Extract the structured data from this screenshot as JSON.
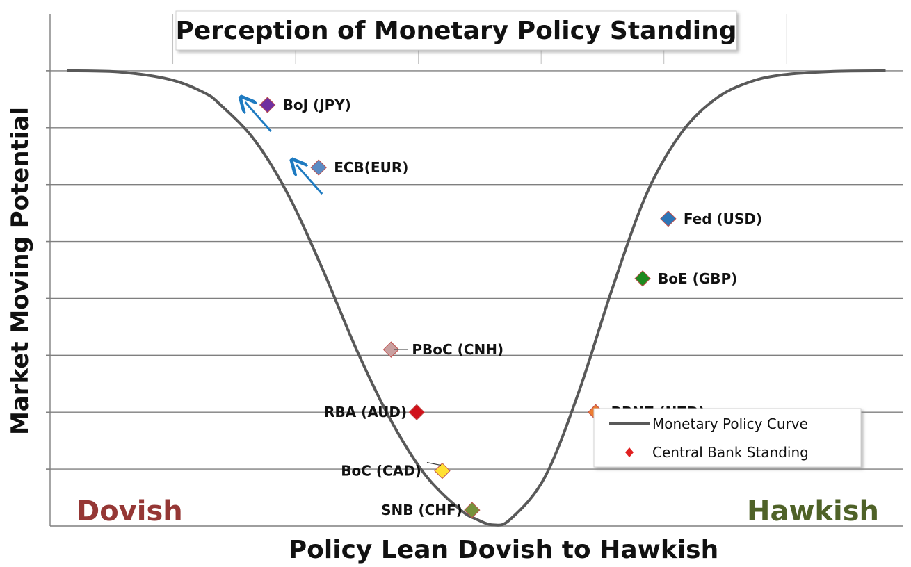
{
  "chart_data": {
    "type": "line",
    "title": "Perception of Monetary Policy Standing",
    "xlabel": "Policy Lean Dovish to Hawkish",
    "ylabel": "Market Moving Potential",
    "x_left_label": "Dovish",
    "x_right_label": "Hawkish",
    "xlim": [
      0,
      10
    ],
    "ylim": [
      0,
      9
    ],
    "grid": true,
    "colors": {
      "curve": "#595959",
      "dovish": "#953735",
      "hawkish": "#4f6228",
      "arrow": "#1f7bc1",
      "legend_marker": "#e02020"
    },
    "series": [
      {
        "name": "Monetary Policy Curve",
        "x": [
          0.2,
          0.8,
          1.4,
          1.8,
          2.0,
          2.4,
          2.8,
          3.2,
          3.6,
          4.0,
          4.4,
          4.8,
          5.0,
          5.2,
          5.4,
          5.8,
          6.2,
          6.6,
          7.0,
          7.4,
          7.8,
          8.2,
          8.6,
          9.2,
          9.8
        ],
        "y": [
          8.0,
          7.98,
          7.85,
          7.62,
          7.4,
          6.78,
          5.8,
          4.5,
          3.08,
          1.85,
          0.9,
          0.3,
          0.12,
          0.02,
          0.12,
          0.85,
          2.35,
          4.2,
          5.85,
          6.9,
          7.5,
          7.8,
          7.93,
          7.99,
          8.0
        ]
      }
    ],
    "points": [
      {
        "label": "BoJ (JPY)",
        "x": 2.55,
        "y": 7.4,
        "color": "#7030a0",
        "arrow": true
      },
      {
        "label": "ECB(EUR)",
        "x": 3.15,
        "y": 6.3,
        "color": "#5b8bc4",
        "arrow": true
      },
      {
        "label": "Fed (USD)",
        "x": 7.25,
        "y": 5.4,
        "color": "#2e75b6",
        "arrow": false
      },
      {
        "label": "BoE (GBP)",
        "x": 6.95,
        "y": 4.35,
        "color": "#1e8a1e",
        "arrow": false
      },
      {
        "label": "PBoC (CNH)",
        "x": 4.0,
        "y": 3.1,
        "color": "#c9a0a0",
        "arrow": false
      },
      {
        "label": "RBA (AUD)",
        "x": 4.3,
        "y": 2.0,
        "color": "#d0101a",
        "arrow": false
      },
      {
        "label": "RBNZ (NZD)",
        "x": 6.4,
        "y": 2.0,
        "color": "#ed7d31",
        "arrow": false
      },
      {
        "label": "BoC (CAD)",
        "x": 4.6,
        "y": 0.97,
        "color": "#ffe033",
        "arrow": false
      },
      {
        "label": "SNB (CHF)",
        "x": 4.95,
        "y": 0.28,
        "color": "#76923c",
        "arrow": false
      }
    ],
    "legend": {
      "position": "bottom-right",
      "items": [
        "Monetary Policy Curve",
        "Central Bank Standing"
      ]
    }
  }
}
